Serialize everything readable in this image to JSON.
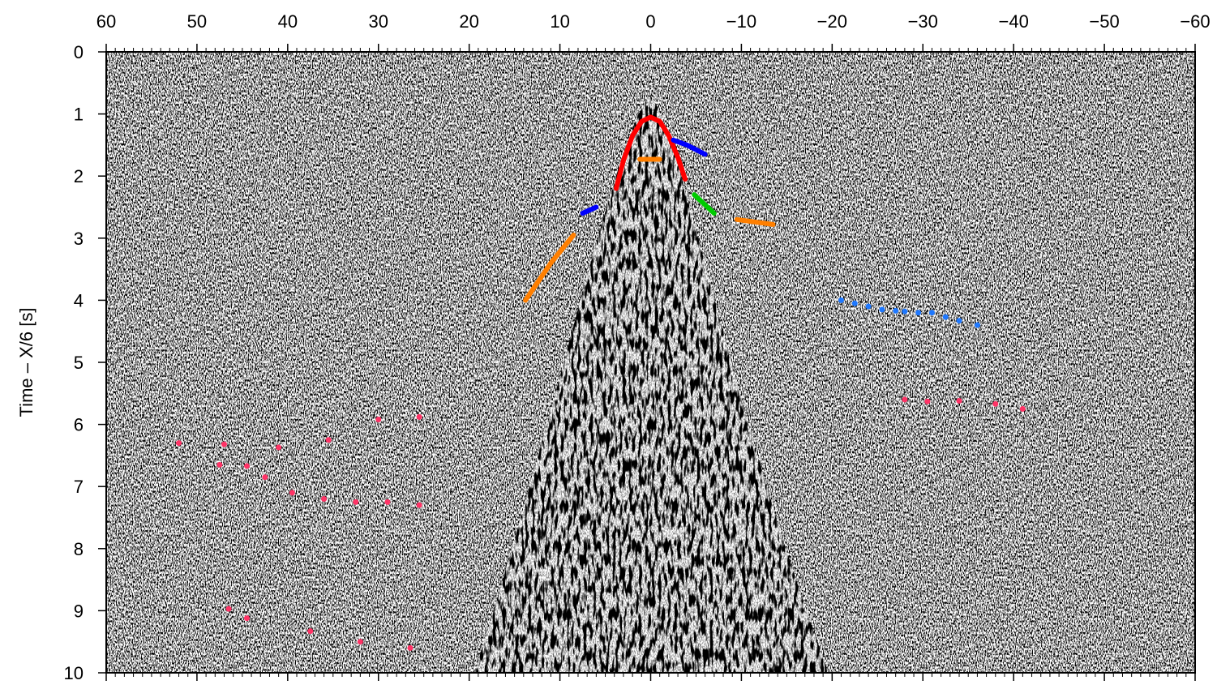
{
  "chart_data": {
    "type": "scatter",
    "ylabel": "Time – X/6 [s]",
    "xlim": [
      60,
      -60
    ],
    "xticks": [
      60,
      50,
      40,
      30,
      20,
      10,
      0,
      {
        "value": -10,
        "label": "−10"
      },
      {
        "value": -20,
        "label": "−20"
      },
      {
        "value": -30,
        "label": "−30"
      },
      {
        "value": -40,
        "label": "−40"
      },
      {
        "value": -50,
        "label": "−50"
      },
      {
        "value": -60,
        "label": "−60"
      }
    ],
    "xminor_step": 1,
    "ylim": [
      0,
      10
    ],
    "y_inverted": true,
    "yticks": [
      0,
      1,
      2,
      3,
      4,
      5,
      6,
      7,
      8,
      9,
      10
    ],
    "series": [
      {
        "color": "#ff0000",
        "style": "line",
        "x": [
          3.8,
          3,
          2,
          1,
          0,
          -1,
          -2,
          -3,
          -3.8
        ],
        "y": [
          2.2,
          1.75,
          1.35,
          1.12,
          1.05,
          1.12,
          1.35,
          1.7,
          2.05
        ]
      },
      {
        "color": "#0000ff",
        "style": "line",
        "x": [
          -2.5,
          -4,
          -6
        ],
        "y": [
          1.42,
          1.5,
          1.65
        ]
      },
      {
        "color": "#0000ff",
        "style": "line",
        "x": [
          6,
          7.5
        ],
        "y": [
          2.5,
          2.6
        ]
      },
      {
        "color": "#ff7f00",
        "style": "line",
        "x": [
          1.2,
          -1
        ],
        "y": [
          1.73,
          1.73
        ]
      },
      {
        "color": "#ff7f00",
        "style": "line",
        "x": [
          13.8,
          11,
          8.5
        ],
        "y": [
          4.0,
          3.4,
          2.95
        ]
      },
      {
        "color": "#ff7f00",
        "style": "line",
        "x": [
          -9.5,
          -13.5
        ],
        "y": [
          2.7,
          2.78
        ]
      },
      {
        "color": "#00cc00",
        "style": "line",
        "x": [
          -4.8,
          -7
        ],
        "y": [
          2.3,
          2.6
        ]
      },
      {
        "color": "#1e78ff",
        "style": "dots",
        "x": [
          -21,
          -22.5,
          -24,
          -25.5,
          -27,
          -28,
          -29.5,
          -31,
          -32.5,
          -34,
          -36
        ],
        "y": [
          4.0,
          4.05,
          4.1,
          4.15,
          4.17,
          4.18,
          4.2,
          4.2,
          4.27,
          4.33,
          4.4
        ]
      },
      {
        "color": "#ff3366",
        "style": "dots",
        "x": [
          52,
          47,
          41,
          35.5,
          30,
          25.5,
          47.5,
          44.5,
          42.5,
          39.5,
          36,
          32.5,
          29,
          25.5,
          46.5,
          44.5,
          37.5,
          32,
          26.5,
          -28,
          -30.5,
          -34,
          -38,
          -41
        ],
        "y": [
          6.3,
          6.32,
          6.37,
          6.25,
          5.92,
          5.88,
          6.65,
          6.67,
          6.85,
          7.1,
          7.2,
          7.25,
          7.25,
          7.3,
          8.97,
          9.12,
          9.33,
          9.5,
          9.6,
          5.6,
          5.63,
          5.62,
          5.67,
          5.75
        ]
      }
    ]
  }
}
